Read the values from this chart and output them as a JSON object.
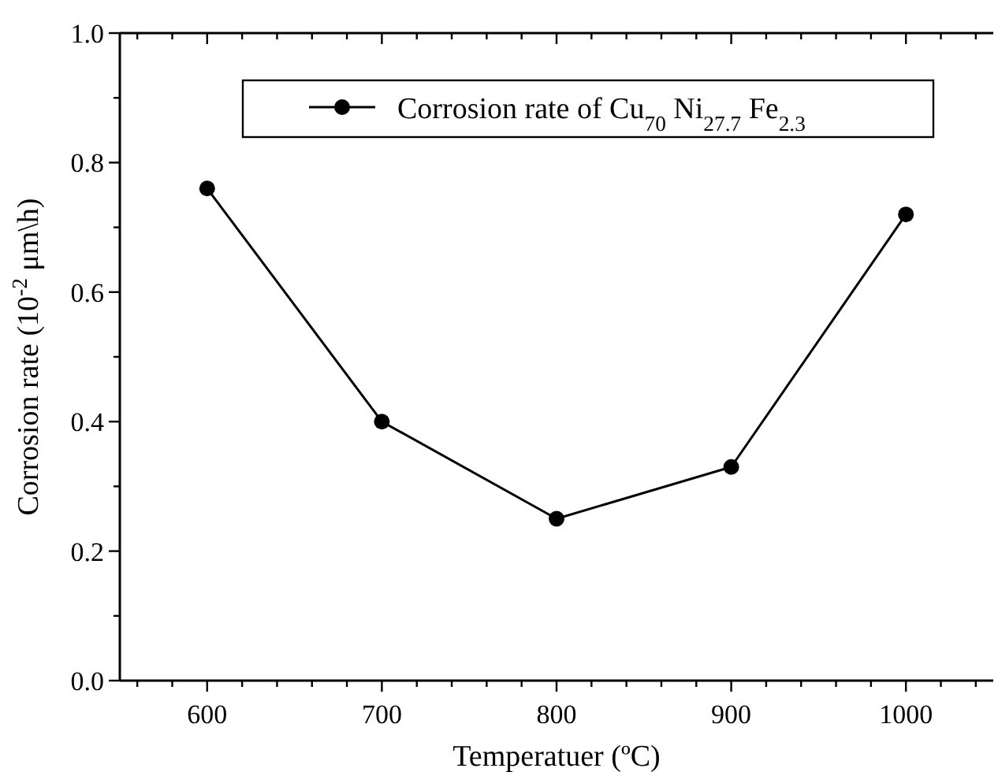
{
  "chart_data": {
    "type": "line",
    "xlabel": "Temperatuer (ºC)",
    "ylabel": "Corrosion rate (10$^{-2}$ μm\\h)",
    "x": [
      600,
      700,
      800,
      900,
      1000
    ],
    "series": [
      {
        "name": "Corrosion rate of Cu$_{70}$ Ni$_{27.7}$ Fe$_{2.3}$",
        "color": "#000000",
        "values": [
          0.76,
          0.4,
          0.25,
          0.33,
          0.72
        ]
      }
    ],
    "xlim": [
      550,
      1050
    ],
    "xticks": [
      {
        "value": 560,
        "label": null
      },
      {
        "value": 580,
        "label": null
      },
      600,
      {
        "value": 620,
        "label": null
      },
      {
        "value": 640,
        "label": null
      },
      {
        "value": 660,
        "label": null
      },
      {
        "value": 680,
        "label": null
      },
      700,
      {
        "value": 720,
        "label": null
      },
      {
        "value": 740,
        "label": null
      },
      {
        "value": 760,
        "label": null
      },
      {
        "value": 780,
        "label": null
      },
      800,
      {
        "value": 820,
        "label": null
      },
      {
        "value": 840,
        "label": null
      },
      {
        "value": 860,
        "label": null
      },
      {
        "value": 880,
        "label": null
      },
      900,
      {
        "value": 920,
        "label": null
      },
      {
        "value": 940,
        "label": null
      },
      {
        "value": 960,
        "label": null
      },
      {
        "value": 980,
        "label": null
      },
      1000,
      {
        "value": 1020,
        "label": null
      },
      {
        "value": 1040,
        "label": null
      }
    ],
    "ylim": [
      0,
      1
    ],
    "yticks": [
      {
        "value": 0,
        "label": "0.0"
      },
      {
        "value": 0.1,
        "label": null
      },
      0.2,
      {
        "value": 0.3,
        "label": null
      },
      0.4,
      {
        "value": 0.5,
        "label": null
      },
      0.6,
      {
        "value": 0.7,
        "label": null
      },
      0.8,
      {
        "value": 0.9,
        "label": null
      },
      {
        "value": 1,
        "label": "1.0"
      }
    ],
    "legend": "top right",
    "marker": "circle",
    "line_style": "solid",
    "grid": false
  }
}
